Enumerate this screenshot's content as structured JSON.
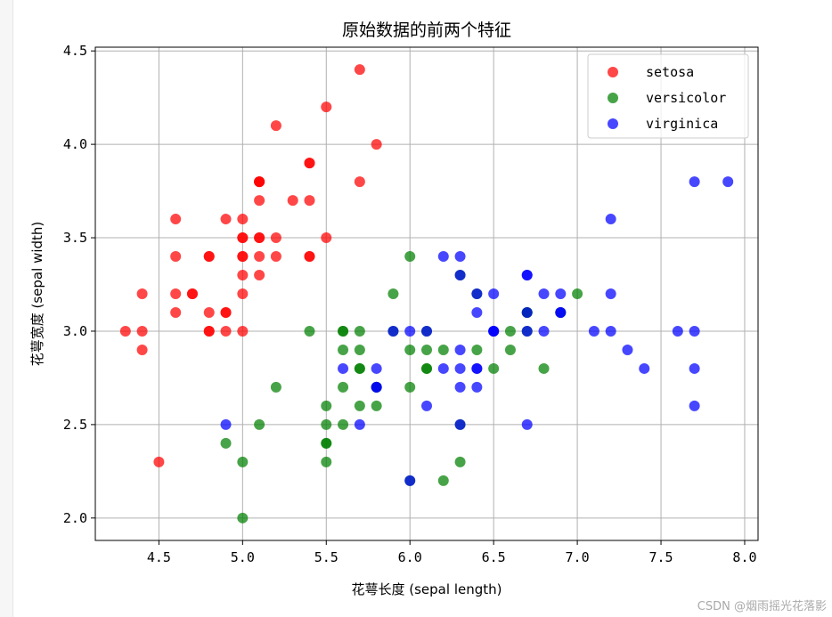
{
  "watermark": "CSDN @烟雨摇光花落影",
  "chart_data": {
    "type": "scatter",
    "title": "原始数据的前两个特征",
    "xlabel": "花萼长度 (sepal length)",
    "ylabel": "花萼宽度 (sepal width)",
    "xlim": [
      4.12,
      8.08
    ],
    "ylim": [
      1.88,
      4.52
    ],
    "xticks": [
      "4.5",
      "5.0",
      "5.5",
      "6.0",
      "6.5",
      "7.0",
      "7.5",
      "8.0"
    ],
    "yticks": [
      "2.0",
      "2.5",
      "3.0",
      "3.5",
      "4.0",
      "4.5"
    ],
    "grid": true,
    "legend_position": "top-right",
    "series": [
      {
        "name": "setosa",
        "color": "#ff0000",
        "points": [
          [
            5.1,
            3.5
          ],
          [
            4.9,
            3.0
          ],
          [
            4.7,
            3.2
          ],
          [
            4.6,
            3.1
          ],
          [
            5.0,
            3.6
          ],
          [
            5.4,
            3.9
          ],
          [
            4.6,
            3.4
          ],
          [
            5.0,
            3.4
          ],
          [
            4.4,
            2.9
          ],
          [
            4.9,
            3.1
          ],
          [
            5.4,
            3.7
          ],
          [
            4.8,
            3.4
          ],
          [
            4.8,
            3.0
          ],
          [
            4.3,
            3.0
          ],
          [
            5.8,
            4.0
          ],
          [
            5.7,
            4.4
          ],
          [
            5.4,
            3.9
          ],
          [
            5.1,
            3.5
          ],
          [
            5.7,
            3.8
          ],
          [
            5.1,
            3.8
          ],
          [
            5.4,
            3.4
          ],
          [
            5.1,
            3.7
          ],
          [
            4.6,
            3.6
          ],
          [
            5.1,
            3.3
          ],
          [
            4.8,
            3.4
          ],
          [
            5.0,
            3.0
          ],
          [
            5.0,
            3.4
          ],
          [
            5.2,
            3.5
          ],
          [
            5.2,
            3.4
          ],
          [
            4.7,
            3.2
          ],
          [
            4.8,
            3.1
          ],
          [
            5.4,
            3.4
          ],
          [
            5.2,
            4.1
          ],
          [
            5.5,
            4.2
          ],
          [
            4.9,
            3.1
          ],
          [
            5.0,
            3.2
          ],
          [
            5.5,
            3.5
          ],
          [
            4.9,
            3.6
          ],
          [
            4.4,
            3.0
          ],
          [
            5.1,
            3.4
          ],
          [
            5.0,
            3.5
          ],
          [
            4.5,
            2.3
          ],
          [
            4.4,
            3.2
          ],
          [
            5.0,
            3.5
          ],
          [
            5.1,
            3.8
          ],
          [
            4.8,
            3.0
          ],
          [
            5.1,
            3.8
          ],
          [
            4.6,
            3.2
          ],
          [
            5.3,
            3.7
          ],
          [
            5.0,
            3.3
          ]
        ]
      },
      {
        "name": "versicolor",
        "color": "#008000",
        "points": [
          [
            7.0,
            3.2
          ],
          [
            6.4,
            3.2
          ],
          [
            6.9,
            3.1
          ],
          [
            5.5,
            2.3
          ],
          [
            6.5,
            2.8
          ],
          [
            5.7,
            2.8
          ],
          [
            6.3,
            3.3
          ],
          [
            4.9,
            2.4
          ],
          [
            6.6,
            2.9
          ],
          [
            5.2,
            2.7
          ],
          [
            5.0,
            2.0
          ],
          [
            5.9,
            3.0
          ],
          [
            6.0,
            2.2
          ],
          [
            6.1,
            2.9
          ],
          [
            5.6,
            2.9
          ],
          [
            6.7,
            3.1
          ],
          [
            5.6,
            3.0
          ],
          [
            5.8,
            2.7
          ],
          [
            6.2,
            2.2
          ],
          [
            5.6,
            2.5
          ],
          [
            5.9,
            3.2
          ],
          [
            6.1,
            2.8
          ],
          [
            6.3,
            2.5
          ],
          [
            6.1,
            2.8
          ],
          [
            6.4,
            2.9
          ],
          [
            6.6,
            3.0
          ],
          [
            6.8,
            2.8
          ],
          [
            6.7,
            3.0
          ],
          [
            6.0,
            2.9
          ],
          [
            5.7,
            2.6
          ],
          [
            5.5,
            2.4
          ],
          [
            5.5,
            2.4
          ],
          [
            5.8,
            2.7
          ],
          [
            6.0,
            2.7
          ],
          [
            5.4,
            3.0
          ],
          [
            6.0,
            3.4
          ],
          [
            6.7,
            3.1
          ],
          [
            6.3,
            2.3
          ],
          [
            5.6,
            3.0
          ],
          [
            5.5,
            2.5
          ],
          [
            5.5,
            2.6
          ],
          [
            6.1,
            3.0
          ],
          [
            5.8,
            2.6
          ],
          [
            5.0,
            2.3
          ],
          [
            5.6,
            2.7
          ],
          [
            5.7,
            3.0
          ],
          [
            5.7,
            2.9
          ],
          [
            6.2,
            2.9
          ],
          [
            5.1,
            2.5
          ],
          [
            5.7,
            2.8
          ]
        ]
      },
      {
        "name": "virginica",
        "color": "#0000ff",
        "points": [
          [
            6.3,
            3.3
          ],
          [
            5.8,
            2.7
          ],
          [
            7.1,
            3.0
          ],
          [
            6.3,
            2.9
          ],
          [
            6.5,
            3.0
          ],
          [
            7.6,
            3.0
          ],
          [
            4.9,
            2.5
          ],
          [
            7.3,
            2.9
          ],
          [
            6.7,
            2.5
          ],
          [
            7.2,
            3.6
          ],
          [
            6.5,
            3.2
          ],
          [
            6.4,
            2.7
          ],
          [
            6.8,
            3.0
          ],
          [
            5.7,
            2.5
          ],
          [
            5.8,
            2.8
          ],
          [
            6.4,
            3.2
          ],
          [
            6.5,
            3.0
          ],
          [
            7.7,
            3.8
          ],
          [
            7.7,
            2.6
          ],
          [
            6.0,
            2.2
          ],
          [
            6.9,
            3.2
          ],
          [
            5.6,
            2.8
          ],
          [
            7.7,
            2.8
          ],
          [
            6.3,
            2.7
          ],
          [
            6.7,
            3.3
          ],
          [
            7.2,
            3.2
          ],
          [
            6.2,
            2.8
          ],
          [
            6.1,
            3.0
          ],
          [
            6.4,
            2.8
          ],
          [
            7.2,
            3.0
          ],
          [
            7.4,
            2.8
          ],
          [
            7.9,
            3.8
          ],
          [
            6.4,
            2.8
          ],
          [
            6.3,
            2.8
          ],
          [
            6.1,
            2.6
          ],
          [
            7.7,
            3.0
          ],
          [
            6.3,
            3.4
          ],
          [
            6.4,
            3.1
          ],
          [
            6.0,
            3.0
          ],
          [
            6.9,
            3.1
          ],
          [
            6.7,
            3.1
          ],
          [
            6.9,
            3.1
          ],
          [
            5.8,
            2.7
          ],
          [
            6.8,
            3.2
          ],
          [
            6.7,
            3.3
          ],
          [
            6.7,
            3.0
          ],
          [
            6.3,
            2.5
          ],
          [
            6.5,
            3.0
          ],
          [
            6.2,
            3.4
          ],
          [
            5.9,
            3.0
          ]
        ]
      }
    ]
  }
}
